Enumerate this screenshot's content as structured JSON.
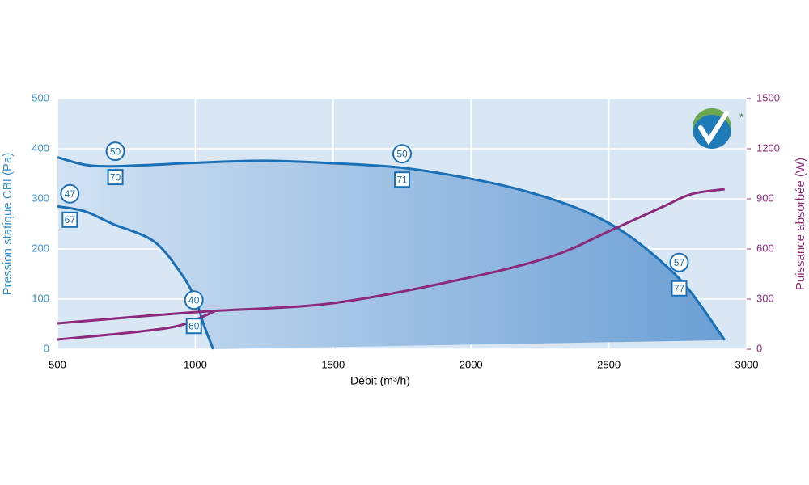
{
  "chart_data": {
    "type": "line",
    "xlabel": "Débit (m³/h)",
    "ylabel": "Pression statique CBI (Pa)",
    "y2label": "Puissance absorbée (W)",
    "xlim": [
      500,
      3000
    ],
    "xticks": [
      500,
      1000,
      1500,
      2000,
      2500,
      3000
    ],
    "ylim": [
      0,
      500
    ],
    "yticks": [
      0,
      100,
      200,
      300,
      400,
      500
    ],
    "y2lim": [
      0,
      1500
    ],
    "y2ticks": [
      0,
      300,
      600,
      900,
      1200,
      1500
    ],
    "grid": true,
    "background": "#d9e7f5",
    "area_colors": [
      "#d2e2f3",
      "#6b9fd4"
    ],
    "series": [
      {
        "color": "#1a6fb5",
        "x": [
          500,
          600,
          700,
          850,
          1000,
          1250,
          1500,
          1750,
          2000,
          2200,
          2400,
          2550,
          2700,
          2800,
          2920
        ],
        "values": [
          383,
          368,
          365,
          368,
          372,
          376,
          371,
          362,
          340,
          315,
          278,
          235,
          170,
          112,
          18
        ]
      },
      {
        "color": "#1a6fb5",
        "x": [
          500,
          600,
          700,
          850,
          950,
          1000,
          1030,
          1065
        ],
        "values": [
          285,
          275,
          250,
          215,
          150,
          100,
          50,
          0
        ]
      },
      {
        "color": "#8b2a7a",
        "axis": "y2",
        "x": [
          500,
          1000,
          1500,
          2000,
          2300,
          2500,
          2700,
          2800,
          2920
        ],
        "values": [
          155,
          222,
          276,
          431,
          560,
          706,
          856,
          929,
          958
        ]
      },
      {
        "color": "#8b2a7a",
        "axis": "y2",
        "x": [
          500,
          800,
          950,
          1070
        ],
        "values": [
          58,
          106,
          145,
          227
        ]
      }
    ],
    "annotations": [
      {
        "x": 710,
        "y": 395,
        "circle": "50",
        "square": "70"
      },
      {
        "x": 1750,
        "y": 390,
        "circle": "50",
        "square": "71"
      },
      {
        "x": 545,
        "y": 310,
        "circle": "47",
        "square": "67"
      },
      {
        "x": 995,
        "y": 98,
        "circle": "40",
        "square": "60"
      },
      {
        "x": 2755,
        "y": 173,
        "circle": "57",
        "square": "77"
      }
    ]
  }
}
